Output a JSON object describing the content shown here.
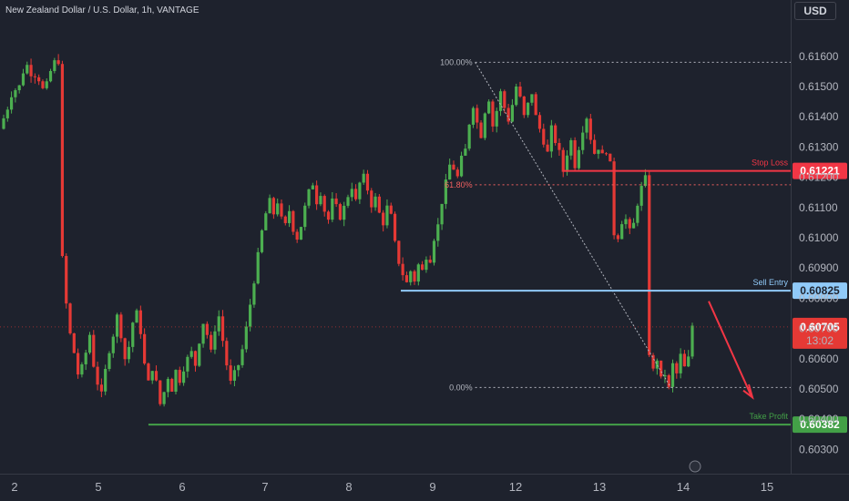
{
  "title": "New Zealand Dollar / U.S. Dollar, 1h, VANTAGE",
  "currency": "USD",
  "colors": {
    "background": "#1e222d",
    "up": "#4caf50",
    "down": "#e53935",
    "stop_loss": "#f23645",
    "entry": "#90caf9",
    "take_profit": "#43a047",
    "fib": "#b2b5be"
  },
  "chart_data": {
    "type": "candlestick",
    "symbol": "NZDUSD",
    "interval": "1h",
    "y_ticks": [
      "0.61600",
      "0.61500",
      "0.61400",
      "0.61300",
      "0.61200",
      "0.61100",
      "0.61000",
      "0.60900",
      "0.60800",
      "0.60700",
      "0.60600",
      "0.60500",
      "0.60400",
      "0.60300"
    ],
    "ylim": [
      0.6025,
      0.6178
    ],
    "x_ticks": [
      "2",
      "5",
      "6",
      "7",
      "8",
      "9",
      "12",
      "13",
      "14",
      "15"
    ],
    "levels": {
      "stop_loss": {
        "label": "Stop Loss",
        "value": "0.61221"
      },
      "sell_entry": {
        "label": "Sell Entry",
        "value": "0.60825"
      },
      "take_profit": {
        "label": "Take Profit",
        "value": "0.60382"
      }
    },
    "fib": [
      {
        "label": "100.00%",
        "value": 0.6158
      },
      {
        "label": "61.80%",
        "value": 0.61175
      },
      {
        "label": "0.00%",
        "value": 0.60505
      }
    ],
    "current_price": {
      "value": "0.60705",
      "countdown": "13:02"
    },
    "path": [
      [
        0,
        0.6138
      ],
      [
        1,
        0.6141
      ],
      [
        2,
        0.6145
      ],
      [
        3,
        0.615
      ],
      [
        4,
        0.6148
      ],
      [
        5,
        0.6152
      ],
      [
        6,
        0.6158
      ],
      [
        7,
        0.6156
      ],
      [
        8,
        0.6153
      ],
      [
        9,
        0.6155
      ],
      [
        10,
        0.615
      ],
      [
        11,
        0.6148
      ],
      [
        12,
        0.6153
      ],
      [
        13,
        0.6157
      ],
      [
        14,
        0.6159
      ],
      [
        15,
        0.6158
      ],
      [
        15.5,
        0.6093
      ],
      [
        16.5,
        0.6078
      ],
      [
        17.5,
        0.6068
      ],
      [
        18.5,
        0.6062
      ],
      [
        19.5,
        0.6055
      ],
      [
        20.5,
        0.6057
      ],
      [
        21.5,
        0.6062
      ],
      [
        22.5,
        0.6068
      ],
      [
        23.5,
        0.6058
      ],
      [
        24.5,
        0.6052
      ],
      [
        25.5,
        0.6048
      ],
      [
        26.5,
        0.6056
      ],
      [
        27.5,
        0.6063
      ],
      [
        28.5,
        0.6068
      ],
      [
        29.5,
        0.6074
      ],
      [
        30.5,
        0.6068
      ],
      [
        31.5,
        0.606
      ],
      [
        32.5,
        0.6064
      ],
      [
        33.5,
        0.6072
      ],
      [
        34.5,
        0.6075
      ],
      [
        35.5,
        0.6069
      ],
      [
        36.5,
        0.6058
      ],
      [
        37.5,
        0.6052
      ],
      [
        38.5,
        0.6057
      ],
      [
        39.5,
        0.6052
      ],
      [
        40.5,
        0.6045
      ],
      [
        41.5,
        0.6049
      ],
      [
        42.5,
        0.6054
      ],
      [
        43.5,
        0.605
      ],
      [
        44.5,
        0.6056
      ],
      [
        45.5,
        0.6053
      ],
      [
        46.5,
        0.6057
      ],
      [
        47.5,
        0.606
      ],
      [
        48.5,
        0.6062
      ],
      [
        49.5,
        0.6058
      ],
      [
        50.5,
        0.6066
      ],
      [
        51.5,
        0.6072
      ],
      [
        52.5,
        0.6068
      ],
      [
        53.5,
        0.6062
      ],
      [
        54.5,
        0.607
      ],
      [
        55.5,
        0.6074
      ],
      [
        56.5,
        0.6066
      ],
      [
        57.5,
        0.6058
      ],
      [
        58.5,
        0.6052
      ],
      [
        59.5,
        0.6055
      ],
      [
        60.5,
        0.6058
      ],
      [
        61.5,
        0.6063
      ],
      [
        62.5,
        0.607
      ],
      [
        63.5,
        0.6078
      ],
      [
        64.5,
        0.6086
      ],
      [
        65.5,
        0.6094
      ],
      [
        66.5,
        0.6102
      ],
      [
        67.5,
        0.6108
      ],
      [
        68.5,
        0.6112
      ],
      [
        69.5,
        0.6108
      ],
      [
        70.5,
        0.6112
      ],
      [
        71.5,
        0.6106
      ],
      [
        72.5,
        0.6104
      ],
      [
        73.5,
        0.6109
      ],
      [
        74.5,
        0.6103
      ],
      [
        75.5,
        0.61
      ],
      [
        76.5,
        0.6104
      ],
      [
        77.5,
        0.611
      ],
      [
        78.5,
        0.6115
      ],
      [
        79.5,
        0.6118
      ],
      [
        80.5,
        0.6112
      ],
      [
        81.5,
        0.6115
      ],
      [
        82.5,
        0.6109
      ],
      [
        83.5,
        0.6106
      ],
      [
        84.5,
        0.6112
      ],
      [
        85.5,
        0.611
      ],
      [
        86.5,
        0.6107
      ],
      [
        87.5,
        0.611
      ],
      [
        88.5,
        0.6114
      ],
      [
        89.5,
        0.6117
      ],
      [
        90.5,
        0.6112
      ],
      [
        91.5,
        0.6118
      ],
      [
        92.5,
        0.612
      ],
      [
        93.5,
        0.6116
      ],
      [
        94.5,
        0.6111
      ],
      [
        95.5,
        0.6113
      ],
      [
        96.5,
        0.6108
      ],
      [
        97.5,
        0.6105
      ],
      [
        98.5,
        0.611
      ],
      [
        99.5,
        0.6107
      ],
      [
        100.5,
        0.6098
      ],
      [
        101.5,
        0.6092
      ],
      [
        102.5,
        0.6088
      ],
      [
        103.5,
        0.6085
      ],
      [
        104.5,
        0.6089
      ],
      [
        105.5,
        0.6086
      ],
      [
        106.5,
        0.6091
      ],
      [
        107.5,
        0.6089
      ],
      [
        108.5,
        0.6094
      ],
      [
        109.5,
        0.6093
      ],
      [
        110.5,
        0.61
      ],
      [
        111.5,
        0.6104
      ],
      [
        112.5,
        0.6112
      ],
      [
        113.5,
        0.6118
      ],
      [
        114.5,
        0.6124
      ],
      [
        115.5,
        0.6123
      ],
      [
        116.5,
        0.612
      ],
      [
        117.5,
        0.6126
      ],
      [
        118.5,
        0.6129
      ],
      [
        119.5,
        0.6138
      ],
      [
        120.5,
        0.6144
      ],
      [
        121.5,
        0.6138
      ],
      [
        122.5,
        0.6134
      ],
      [
        123.5,
        0.6142
      ],
      [
        124.5,
        0.6146
      ],
      [
        125.5,
        0.6137
      ],
      [
        126.5,
        0.6142
      ],
      [
        127.5,
        0.6148
      ],
      [
        128.5,
        0.6143
      ],
      [
        129.5,
        0.6139
      ],
      [
        130.5,
        0.6144
      ],
      [
        131.5,
        0.615
      ],
      [
        132.5,
        0.6146
      ],
      [
        133.5,
        0.614
      ],
      [
        134.5,
        0.6144
      ],
      [
        135.5,
        0.6148
      ],
      [
        136.5,
        0.614
      ],
      [
        137.5,
        0.6136
      ],
      [
        138.5,
        0.6132
      ],
      [
        139.5,
        0.6128
      ],
      [
        140.5,
        0.6136
      ],
      [
        141.5,
        0.6132
      ],
      [
        142.5,
        0.6128
      ],
      [
        143.5,
        0.6122
      ],
      [
        144.5,
        0.6128
      ],
      [
        145.5,
        0.6132
      ],
      [
        146.5,
        0.6124
      ],
      [
        147.5,
        0.613
      ],
      [
        148.5,
        0.6136
      ],
      [
        149.5,
        0.614
      ],
      [
        150.5,
        0.6133
      ],
      [
        151.5,
        0.6128
      ],
      [
        152.5,
        0.613
      ],
      [
        153.5,
        0.6127
      ],
      [
        154.5,
        0.6129
      ],
      [
        155.5,
        0.6124
      ],
      [
        156,
        0.6105
      ],
      [
        157,
        0.6098
      ],
      [
        158,
        0.6103
      ],
      [
        159,
        0.6108
      ],
      [
        160,
        0.6104
      ],
      [
        161,
        0.61
      ],
      [
        162,
        0.6109
      ],
      [
        163,
        0.6114
      ],
      [
        164,
        0.6119
      ],
      [
        165,
        0.612
      ],
      [
        165.5,
        0.6062
      ],
      [
        166.5,
        0.6056
      ],
      [
        167.5,
        0.606
      ],
      [
        168.5,
        0.6053
      ],
      [
        169.5,
        0.6055
      ],
      [
        170.5,
        0.605
      ],
      [
        171.5,
        0.6058
      ],
      [
        172.5,
        0.6055
      ],
      [
        173.5,
        0.6061
      ],
      [
        174.5,
        0.6057
      ],
      [
        175.5,
        0.606
      ],
      [
        176.5,
        0.6071
      ]
    ]
  }
}
